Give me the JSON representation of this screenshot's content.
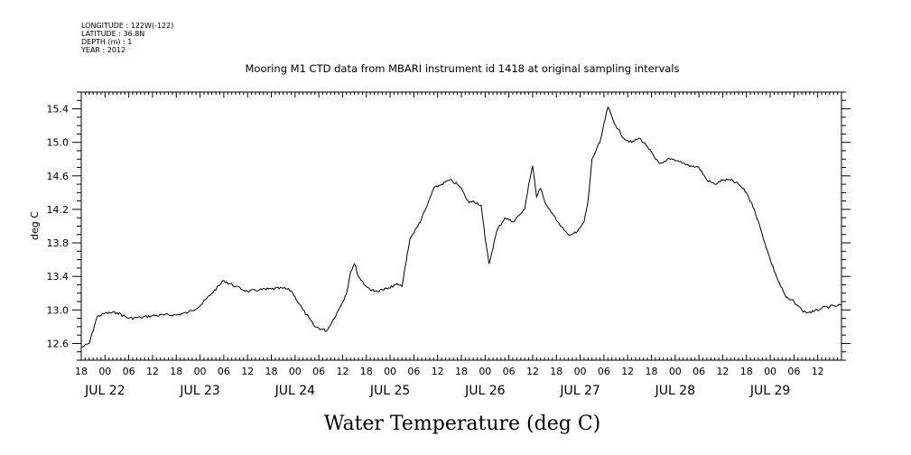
{
  "header": {
    "meta_lines": [
      "LONGITUDE : 122W(-122)",
      "LATITUDE : 36.8N",
      "DEPTH (m) : 1",
      "YEAR : 2012"
    ],
    "title": "Mooring M1 CTD data from MBARI instrument id 1418 at original sampling intervals"
  },
  "chart_data": {
    "type": "line",
    "title": "Mooring M1 CTD data from MBARI instrument id 1418 at original sampling intervals",
    "xlabel": "Water Temperature (deg C)",
    "ylabel": "deg C",
    "xlim": [
      "2012-07-21T18:00",
      "2012-07-29T18:00"
    ],
    "ylim": [
      12.4,
      15.6
    ],
    "yticks": [
      12.6,
      13.0,
      13.4,
      13.8,
      14.2,
      14.6,
      15.0,
      15.4
    ],
    "ytick_labels": [
      "12.6",
      "13.0",
      "13.4",
      "13.8",
      "14.2",
      "14.6",
      "15.0",
      "15.4"
    ],
    "xticks": [
      "2012-07-21T18:00",
      "2012-07-22T00:00",
      "2012-07-22T06:00",
      "2012-07-22T12:00",
      "2012-07-22T18:00",
      "2012-07-23T00:00",
      "2012-07-23T06:00",
      "2012-07-23T12:00",
      "2012-07-23T18:00",
      "2012-07-24T00:00",
      "2012-07-24T06:00",
      "2012-07-24T12:00",
      "2012-07-24T18:00",
      "2012-07-25T00:00",
      "2012-07-25T06:00",
      "2012-07-25T12:00",
      "2012-07-25T18:00",
      "2012-07-26T00:00",
      "2012-07-26T06:00",
      "2012-07-26T12:00",
      "2012-07-26T18:00",
      "2012-07-27T00:00",
      "2012-07-27T06:00",
      "2012-07-27T12:00",
      "2012-07-27T18:00",
      "2012-07-28T00:00",
      "2012-07-28T06:00",
      "2012-07-28T12:00",
      "2012-07-28T18:00",
      "2012-07-29T00:00",
      "2012-07-29T06:00",
      "2012-07-29T12:00"
    ],
    "xtick_labels": [
      "18",
      "00",
      "06",
      "12",
      "18",
      "00",
      "06",
      "12",
      "18",
      "00",
      "06",
      "12",
      "18",
      "00",
      "06",
      "12",
      "18",
      "00",
      "06",
      "12",
      "18",
      "00",
      "06",
      "12",
      "18",
      "00",
      "06",
      "12",
      "18",
      "00",
      "06",
      "12"
    ],
    "day_labels": [
      {
        "date": "2012-07-22T00:00",
        "label": "JUL 22"
      },
      {
        "date": "2012-07-23T00:00",
        "label": "JUL 23"
      },
      {
        "date": "2012-07-24T00:00",
        "label": "JUL 24"
      },
      {
        "date": "2012-07-25T00:00",
        "label": "JUL 25"
      },
      {
        "date": "2012-07-26T00:00",
        "label": "JUL 26"
      },
      {
        "date": "2012-07-27T00:00",
        "label": "JUL 27"
      },
      {
        "date": "2012-07-28T00:00",
        "label": "JUL 28"
      },
      {
        "date": "2012-07-29T00:00",
        "label": "JUL 29"
      }
    ],
    "grid": false,
    "series": [
      {
        "x": [
          "2012-07-21T18:00",
          "2012-07-21T20:00",
          "2012-07-21T22:00",
          "2012-07-22T00:00",
          "2012-07-22T03:00",
          "2012-07-22T06:00",
          "2012-07-22T09:00",
          "2012-07-22T12:00",
          "2012-07-22T15:00",
          "2012-07-22T18:00",
          "2012-07-22T21:00",
          "2012-07-23T00:00",
          "2012-07-23T03:00",
          "2012-07-23T06:00",
          "2012-07-23T09:00",
          "2012-07-23T12:00",
          "2012-07-23T15:00",
          "2012-07-23T18:00",
          "2012-07-23T21:00",
          "2012-07-23T23:00",
          "2012-07-24T02:00",
          "2012-07-24T05:00",
          "2012-07-24T08:00",
          "2012-07-24T11:00",
          "2012-07-24T13:00",
          "2012-07-24T14:00",
          "2012-07-24T15:00",
          "2012-07-24T16:00",
          "2012-07-24T18:00",
          "2012-07-24T20:00",
          "2012-07-24T22:00",
          "2012-07-25T00:00",
          "2012-07-25T01:00",
          "2012-07-25T02:00",
          "2012-07-25T03:00",
          "2012-07-25T05:00",
          "2012-07-25T07:00",
          "2012-07-25T09:00",
          "2012-07-25T11:00",
          "2012-07-25T13:00",
          "2012-07-25T15:00",
          "2012-07-25T17:00",
          "2012-07-25T18:00",
          "2012-07-25T19:00",
          "2012-07-25T20:00",
          "2012-07-25T21:00",
          "2012-07-25T23:00",
          "2012-07-26T00:00",
          "2012-07-26T01:00",
          "2012-07-26T03:00",
          "2012-07-26T05:00",
          "2012-07-26T07:00",
          "2012-07-26T09:00",
          "2012-07-26T10:00",
          "2012-07-26T11:00",
          "2012-07-26T12:00",
          "2012-07-26T12:30",
          "2012-07-26T13:00",
          "2012-07-26T14:00",
          "2012-07-26T15:00",
          "2012-07-26T17:00",
          "2012-07-26T19:00",
          "2012-07-26T20:00",
          "2012-07-26T21:00",
          "2012-07-26T23:00",
          "2012-07-27T00:00",
          "2012-07-27T01:00",
          "2012-07-27T02:00",
          "2012-07-27T03:00",
          "2012-07-27T05:00",
          "2012-07-27T07:00",
          "2012-07-27T09:00",
          "2012-07-27T11:00",
          "2012-07-27T13:00",
          "2012-07-27T15:00",
          "2012-07-27T17:00",
          "2012-07-27T19:00",
          "2012-07-27T20:00",
          "2012-07-27T21:00",
          "2012-07-27T22:00",
          "2012-07-28T00:00",
          "2012-07-28T02:00",
          "2012-07-28T04:00",
          "2012-07-28T06:00",
          "2012-07-28T08:00",
          "2012-07-28T10:00",
          "2012-07-28T12:00",
          "2012-07-28T14:00",
          "2012-07-28T16:00",
          "2012-07-28T18:00",
          "2012-07-28T20:00",
          "2012-07-28T22:00",
          "2012-07-29T00:00",
          "2012-07-29T02:00",
          "2012-07-29T04:00",
          "2012-07-29T05:00",
          "2012-07-29T06:00",
          "2012-07-29T07:00",
          "2012-07-29T08:00",
          "2012-07-29T09:00",
          "2012-07-29T11:00",
          "2012-07-29T13:00",
          "2012-07-29T15:00",
          "2012-07-29T17:00",
          "2012-07-29T18:00"
        ],
        "y": [
          12.55,
          12.6,
          12.92,
          12.96,
          12.97,
          12.9,
          12.91,
          12.93,
          12.94,
          12.94,
          12.97,
          13.05,
          13.2,
          13.35,
          13.28,
          13.22,
          13.24,
          13.25,
          13.26,
          13.23,
          13.0,
          12.8,
          12.75,
          13.0,
          13.2,
          13.45,
          13.55,
          13.4,
          13.28,
          13.22,
          13.24,
          13.26,
          13.3,
          13.3,
          13.28,
          13.85,
          14.0,
          14.2,
          14.45,
          14.5,
          14.55,
          14.5,
          14.45,
          14.35,
          14.28,
          14.3,
          14.25,
          13.85,
          13.55,
          13.95,
          14.1,
          14.05,
          14.15,
          14.2,
          14.5,
          14.72,
          14.55,
          14.35,
          14.45,
          14.3,
          14.15,
          14.0,
          13.95,
          13.9,
          13.92,
          13.98,
          14.05,
          14.3,
          14.8,
          15.0,
          15.42,
          15.2,
          15.05,
          15.0,
          15.05,
          14.95,
          14.8,
          14.75,
          14.76,
          14.8,
          14.78,
          14.75,
          14.72,
          14.7,
          14.55,
          14.5,
          14.55,
          14.55,
          14.5,
          14.4,
          14.2,
          13.9,
          13.6,
          13.35,
          13.15,
          13.12,
          13.1,
          13.05,
          13.0,
          12.97,
          12.98,
          13.02,
          13.04,
          13.05,
          13.06
        ]
      }
    ]
  }
}
